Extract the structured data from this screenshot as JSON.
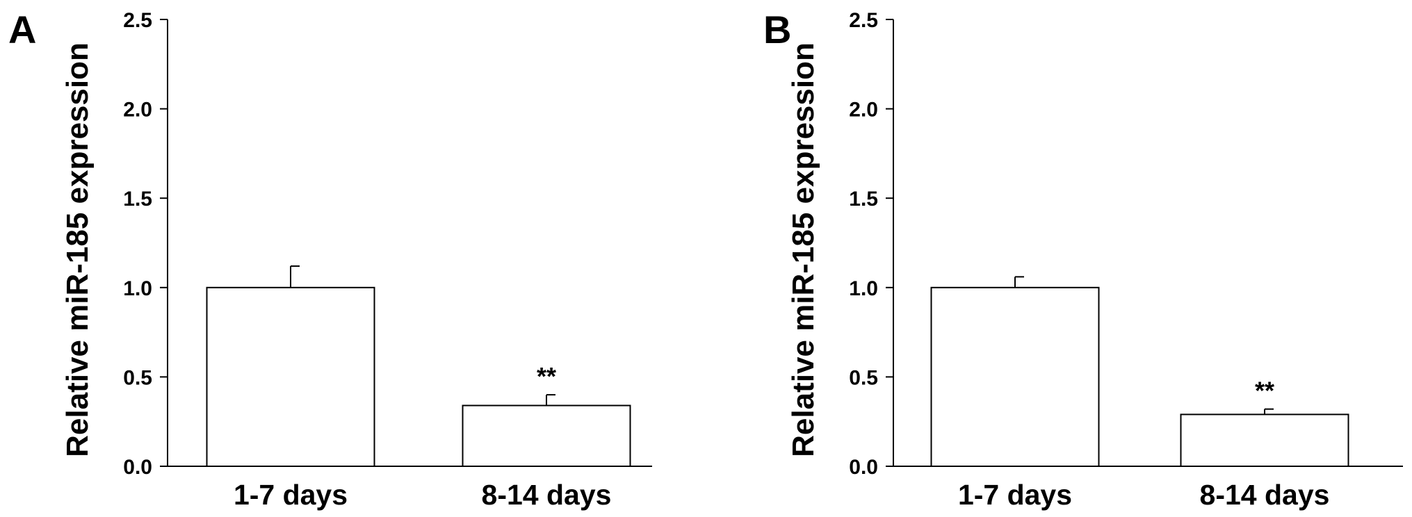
{
  "chart_data": [
    {
      "panel": "A",
      "type": "bar",
      "ylabel": "Relative miR-185 expression",
      "categories": [
        "1-7 days",
        "8-14 days"
      ],
      "values": [
        1.0,
        0.34
      ],
      "errors": [
        0.12,
        0.06
      ],
      "annotations": [
        "",
        "**"
      ],
      "ylim": [
        0,
        2.5
      ],
      "yticks": [
        "0.0",
        "0.5",
        "1.0",
        "1.5",
        "2.0",
        "2.5"
      ],
      "grid": false
    },
    {
      "panel": "B",
      "type": "bar",
      "ylabel": "Relative miR-185 expression",
      "categories": [
        "1-7 days",
        "8-14 days"
      ],
      "values": [
        1.0,
        0.29
      ],
      "errors": [
        0.06,
        0.03
      ],
      "annotations": [
        "",
        "**"
      ],
      "ylim": [
        0,
        2.5
      ],
      "yticks": [
        "0.0",
        "0.5",
        "1.0",
        "1.5",
        "2.0",
        "2.5"
      ],
      "grid": false
    }
  ]
}
